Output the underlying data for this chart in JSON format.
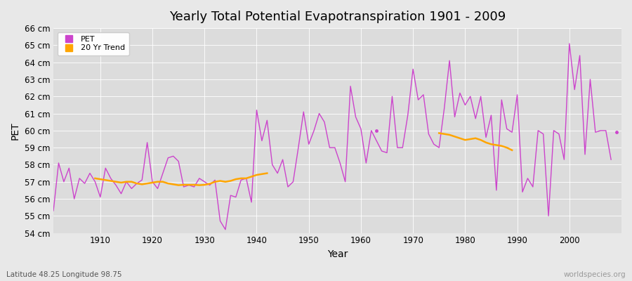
{
  "title": "Yearly Total Potential Evapotranspiration 1901 - 2009",
  "xlabel": "Year",
  "ylabel": "PET",
  "subtitle_lat": "Latitude 48.25 Longitude 98.75",
  "watermark": "worldspecies.org",
  "pet_color": "#CC44CC",
  "trend_color": "#FFA500",
  "background_color": "#E8E8E8",
  "plot_bg_color": "#DCDCDC",
  "grid_color": "#FFFFFF",
  "ylim": [
    54,
    66
  ],
  "yticks": [
    54,
    55,
    56,
    57,
    58,
    59,
    60,
    61,
    62,
    63,
    64,
    65,
    66
  ],
  "xlim": [
    1901,
    2010
  ],
  "xticks": [
    1910,
    1920,
    1930,
    1940,
    1950,
    1960,
    1970,
    1980,
    1990,
    2000
  ],
  "years": [
    1901,
    1902,
    1903,
    1904,
    1905,
    1906,
    1907,
    1908,
    1909,
    1910,
    1911,
    1912,
    1913,
    1914,
    1915,
    1916,
    1917,
    1918,
    1919,
    1920,
    1921,
    1922,
    1923,
    1924,
    1925,
    1926,
    1927,
    1928,
    1929,
    1930,
    1931,
    1932,
    1933,
    1934,
    1935,
    1936,
    1937,
    1938,
    1939,
    1940,
    1941,
    1942,
    1943,
    1944,
    1945,
    1946,
    1947,
    1948,
    1949,
    1950,
    1951,
    1952,
    1953,
    1954,
    1955,
    1956,
    1957,
    1958,
    1959,
    1960,
    1961,
    1962,
    1964,
    1965,
    1966,
    1967,
    1968,
    1969,
    1970,
    1971,
    1972,
    1973,
    1974,
    1975,
    1976,
    1977,
    1978,
    1979,
    1980,
    1981,
    1982,
    1983,
    1984,
    1985,
    1986,
    1987,
    1988,
    1989,
    1990,
    1991,
    1992,
    1993,
    1994,
    1995,
    1996,
    1997,
    1998,
    1999,
    2000,
    2001,
    2002,
    2003,
    2004,
    2005,
    2006,
    2007,
    2008
  ],
  "pet_values": [
    55.3,
    58.1,
    57.0,
    57.8,
    56.0,
    57.2,
    56.9,
    57.5,
    57.0,
    56.1,
    57.8,
    57.2,
    56.8,
    56.3,
    57.0,
    56.6,
    56.9,
    57.1,
    59.3,
    57.0,
    56.6,
    57.5,
    58.4,
    58.5,
    58.2,
    56.7,
    56.8,
    56.7,
    57.2,
    57.0,
    56.8,
    57.1,
    54.7,
    54.2,
    56.2,
    56.1,
    57.1,
    57.2,
    55.8,
    61.2,
    59.4,
    60.6,
    58.0,
    57.5,
    58.3,
    56.7,
    57.0,
    59.0,
    61.1,
    59.2,
    60.0,
    61.0,
    60.5,
    59.0,
    59.0,
    58.1,
    57.0,
    62.6,
    60.8,
    60.1,
    58.1,
    60.0,
    58.8,
    58.7,
    62.0,
    59.0,
    59.0,
    60.9,
    63.6,
    61.8,
    62.1,
    59.8,
    59.2,
    59.0,
    61.3,
    64.1,
    60.8,
    62.2,
    61.5,
    62.0,
    60.7,
    62.0,
    59.6,
    60.9,
    56.5,
    61.8,
    60.1,
    59.9,
    62.1,
    56.4,
    57.2,
    56.7,
    60.0,
    59.8,
    55.0,
    60.0,
    59.8,
    58.3,
    65.1,
    62.4,
    64.4,
    58.6,
    63.0,
    59.9,
    60.0,
    60.0,
    58.3
  ],
  "isolated_points": [
    [
      1963,
      60.0
    ],
    [
      2009,
      59.9
    ]
  ],
  "trend_seg1_years": [
    1909,
    1910,
    1911,
    1912,
    1913,
    1914,
    1915,
    1916,
    1917,
    1918,
    1919,
    1920,
    1921,
    1922,
    1923,
    1924,
    1925,
    1926,
    1927,
    1928,
    1929,
    1930,
    1931,
    1932,
    1933,
    1934,
    1935,
    1936,
    1937,
    1938,
    1939,
    1940,
    1941,
    1942
  ],
  "trend_seg1_values": [
    57.2,
    57.15,
    57.1,
    57.05,
    57.0,
    56.95,
    57.0,
    57.0,
    56.9,
    56.85,
    56.9,
    56.95,
    57.0,
    57.0,
    56.9,
    56.85,
    56.8,
    56.82,
    56.82,
    56.82,
    56.8,
    56.82,
    56.88,
    57.0,
    57.05,
    57.0,
    57.05,
    57.15,
    57.2,
    57.2,
    57.3,
    57.4,
    57.45,
    57.5
  ],
  "trend_seg2_years": [
    1975,
    1976,
    1977,
    1978,
    1979,
    1980,
    1981,
    1982,
    1983,
    1984,
    1985,
    1986,
    1987,
    1988,
    1989
  ],
  "trend_seg2_values": [
    59.85,
    59.8,
    59.75,
    59.65,
    59.55,
    59.45,
    59.5,
    59.55,
    59.45,
    59.3,
    59.2,
    59.15,
    59.1,
    59.0,
    58.85
  ]
}
